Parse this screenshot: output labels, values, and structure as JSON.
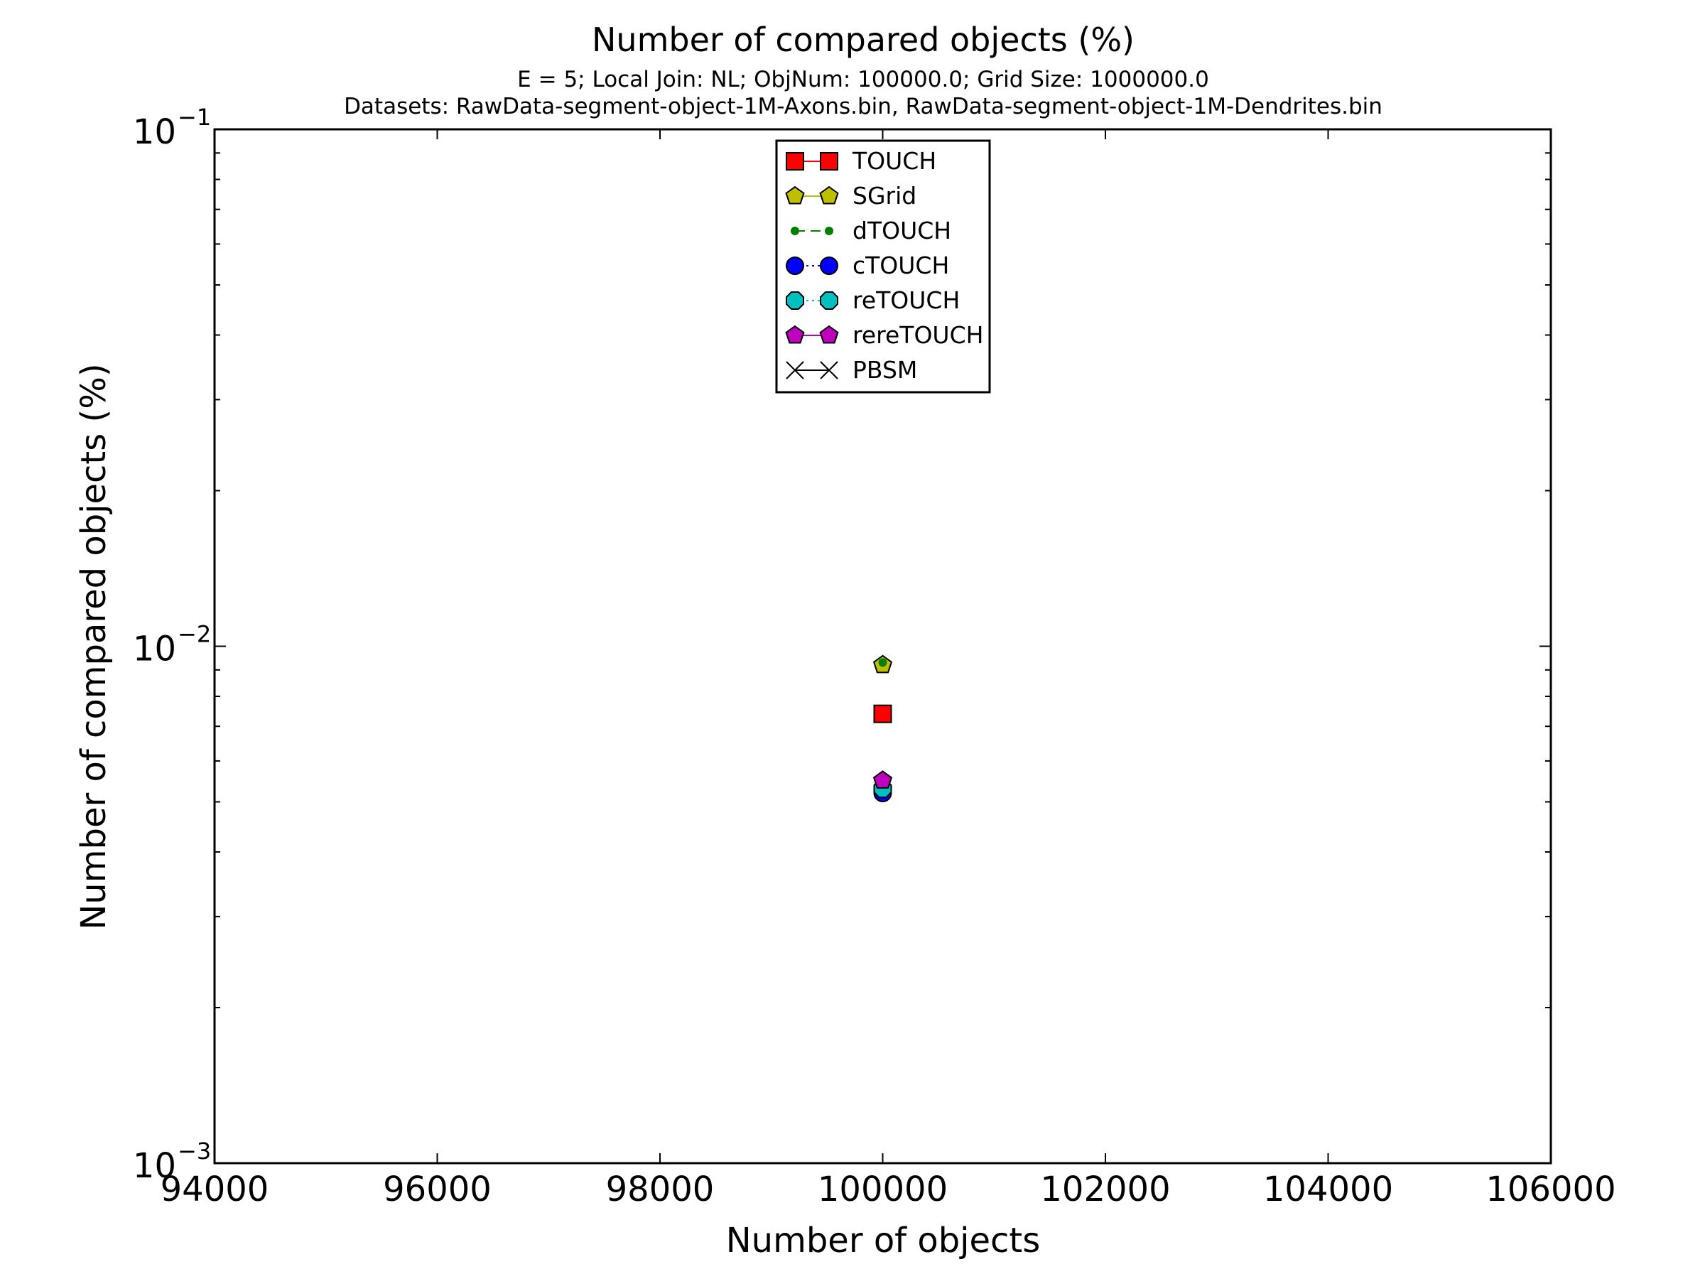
{
  "chart_data": {
    "type": "scatter",
    "title": "Number of compared objects (%)",
    "subtitle_lines": [
      "E = 5; Local Join: NL; ObjNum: 100000.0; Grid Size: 1000000.0",
      "Datasets: RawData-segment-object-1M-Axons.bin, RawData-segment-object-1M-Dendrites.bin"
    ],
    "xlabel": "Number of objects",
    "ylabel": "Number of compared objects (%)",
    "xlim": [
      94000,
      106000
    ],
    "ylim": [
      0.001,
      0.1
    ],
    "yscale": "log",
    "x_ticks": [
      94000,
      96000,
      98000,
      100000,
      102000,
      104000,
      106000
    ],
    "x_tick_labels": [
      "94000",
      "96000",
      "98000",
      "100000",
      "102000",
      "104000",
      "106000"
    ],
    "y_major_ticks": [
      {
        "value": 0.1,
        "mantissa": "10",
        "exponent": "−1"
      },
      {
        "value": 0.01,
        "mantissa": "10",
        "exponent": "−2"
      },
      {
        "value": 0.001,
        "mantissa": "10",
        "exponent": "−3"
      }
    ],
    "grid": false,
    "legend_position": "upper-center",
    "series": [
      {
        "name": "TOUCH",
        "marker": "square",
        "line": "solid",
        "color": "#ff0000",
        "x": [
          100000
        ],
        "y": [
          0.0074
        ]
      },
      {
        "name": "SGrid",
        "marker": "pentagon",
        "line": "solid",
        "color": "#bfbf00",
        "x": [
          100000
        ],
        "y": [
          0.0092
        ]
      },
      {
        "name": "dTOUCH",
        "marker": "point",
        "line": "dashed",
        "color": "#008000",
        "x": [
          100000
        ],
        "y": [
          0.0093
        ]
      },
      {
        "name": "cTOUCH",
        "marker": "circle",
        "line": "dotted",
        "color": "#0000ff",
        "x": [
          100000
        ],
        "y": [
          0.0052
        ]
      },
      {
        "name": "reTOUCH",
        "marker": "octagon",
        "line": "dotted",
        "color": "#00bfbf",
        "x": [
          100000
        ],
        "y": [
          0.0053
        ]
      },
      {
        "name": "rereTOUCH",
        "marker": "pentagon",
        "line": "solid",
        "color": "#bf00bf",
        "x": [
          100000
        ],
        "y": [
          0.0055
        ]
      },
      {
        "name": "PBSM",
        "marker": "x",
        "line": "solid",
        "color": "#000000",
        "x": [],
        "y": []
      }
    ]
  }
}
